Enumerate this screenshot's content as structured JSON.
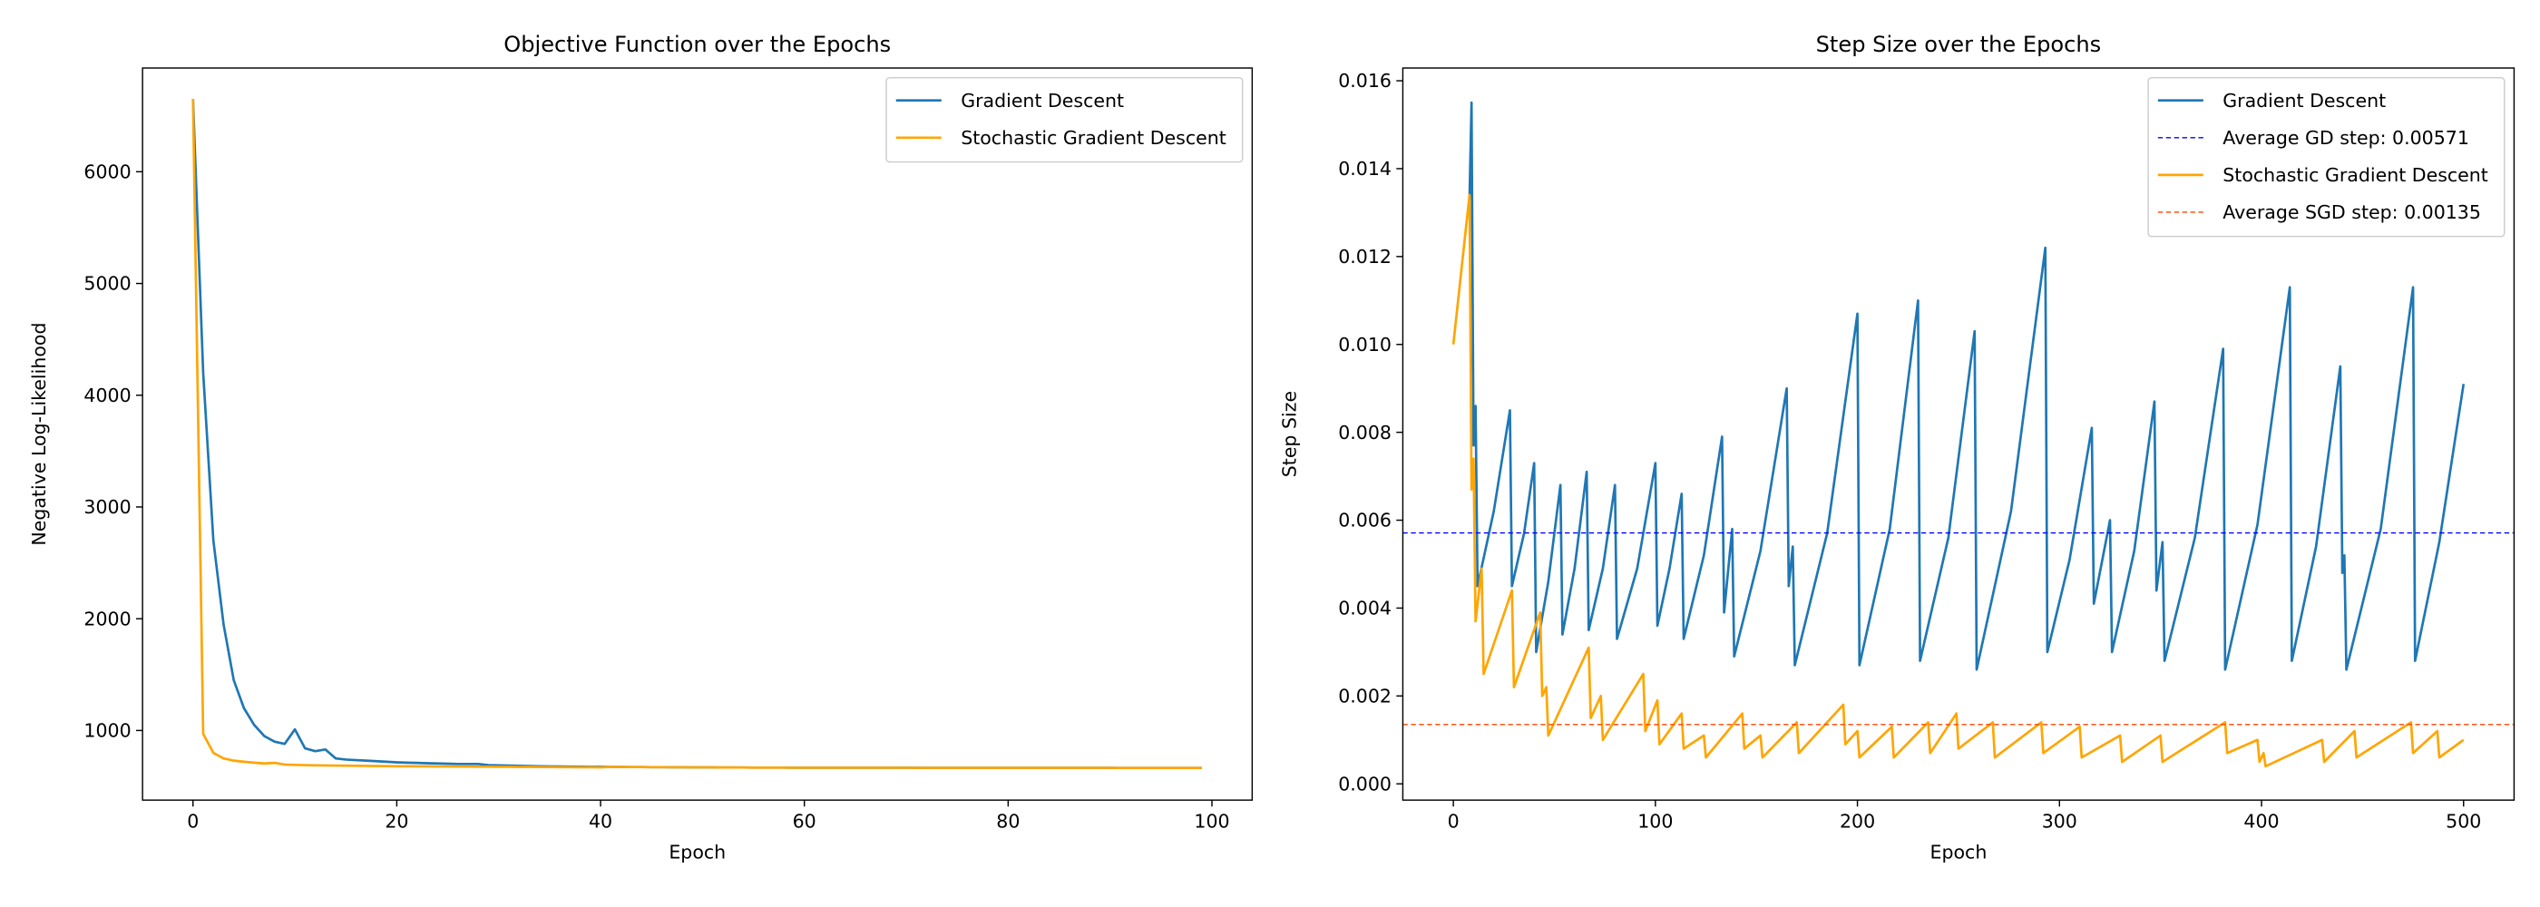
{
  "chart_data": [
    {
      "type": "line",
      "title": "Objective Function over the Epochs",
      "xlabel": "Epoch",
      "ylabel": "Negative Log-Likelihood",
      "x": [
        0,
        1,
        2,
        3,
        4,
        5,
        6,
        7,
        8,
        9,
        10,
        11,
        12,
        13,
        14,
        15,
        16,
        17,
        18,
        19,
        20,
        21,
        22,
        23,
        24,
        25,
        26,
        27,
        28,
        29,
        30,
        31,
        32,
        33,
        34,
        35,
        36,
        37,
        38,
        39,
        40,
        41,
        42,
        43,
        44,
        45,
        46,
        47,
        48,
        49,
        50,
        51,
        52,
        53,
        54,
        55,
        56,
        57,
        58,
        59,
        60,
        61,
        62,
        63,
        64,
        65,
        66,
        67,
        68,
        69,
        70,
        71,
        72,
        73,
        74,
        75,
        76,
        77,
        78,
        79,
        80,
        81,
        82,
        83,
        84,
        85,
        86,
        87,
        88,
        89,
        90,
        91,
        92,
        93,
        94,
        95,
        96,
        97,
        98,
        99
      ],
      "series": [
        {
          "name": "Gradient Descent",
          "color": "#1f77b4",
          "values": [
            6650,
            4200,
            2700,
            1950,
            1450,
            1200,
            1050,
            950,
            900,
            880,
            1010,
            840,
            815,
            830,
            750,
            740,
            735,
            730,
            725,
            720,
            715,
            712,
            710,
            707,
            705,
            703,
            700,
            700,
            700,
            690,
            688,
            686,
            684,
            682,
            680,
            679,
            678,
            677,
            676,
            675,
            675,
            674,
            674,
            673,
            673,
            672,
            672,
            671,
            671,
            670,
            670,
            670,
            669,
            669,
            669,
            668,
            668,
            668,
            668,
            667,
            667,
            667,
            667,
            667,
            667,
            667,
            667,
            667,
            667,
            667,
            667,
            666,
            666,
            666,
            666,
            666,
            666,
            666,
            666,
            666,
            666,
            666,
            666,
            666,
            666,
            666,
            666,
            666,
            666,
            666,
            666,
            665,
            665,
            665,
            665,
            665,
            665,
            665,
            665,
            665
          ]
        },
        {
          "name": "Stochastic Gradient Descent",
          "color": "#ffa500",
          "values": [
            6650,
            970,
            800,
            750,
            730,
            720,
            712,
            705,
            710,
            695,
            692,
            690,
            688,
            687,
            686,
            685,
            684,
            683,
            682,
            681,
            680,
            680,
            679,
            679,
            678,
            678,
            677,
            677,
            676,
            676,
            675,
            675,
            674,
            674,
            673,
            673,
            672,
            672,
            671,
            671,
            670,
            674,
            674,
            673,
            673,
            672,
            672,
            671,
            671,
            670,
            670,
            670,
            669,
            669,
            669,
            668,
            668,
            668,
            668,
            667,
            667,
            667,
            667,
            667,
            667,
            667,
            667,
            667,
            667,
            667,
            667,
            666,
            666,
            666,
            666,
            666,
            666,
            666,
            666,
            666,
            666,
            666,
            666,
            666,
            666,
            666,
            666,
            666,
            666,
            666,
            666,
            665,
            665,
            665,
            665,
            665,
            665,
            665,
            665,
            665
          ]
        }
      ],
      "xlim": [
        -4.95,
        103.95
      ],
      "xticks": [
        0,
        20,
        40,
        60,
        80,
        100
      ],
      "ylim": [
        377,
        6928
      ],
      "yticks": [
        1000,
        2000,
        3000,
        4000,
        5000,
        6000
      ],
      "legend": "upper right"
    },
    {
      "type": "line",
      "title": "Step Size over the Epochs",
      "xlabel": "Epoch",
      "ylabel": "Step Size",
      "series": [
        {
          "name": "Gradient Descent",
          "color": "#1f77b4",
          "x": [
            8,
            9,
            10,
            11,
            12,
            20,
            28,
            29,
            35,
            40,
            41,
            47,
            53,
            54,
            60,
            66,
            67,
            74,
            80,
            81,
            91,
            100,
            101,
            107,
            113,
            114,
            124,
            133,
            134,
            138,
            139,
            152,
            165,
            166,
            168,
            169,
            185,
            200,
            201,
            216,
            230,
            231,
            245,
            258,
            259,
            276,
            293,
            294,
            305,
            316,
            317,
            325,
            326,
            337,
            347,
            348,
            351,
            352,
            367,
            381,
            382,
            398,
            414,
            415,
            427,
            439,
            440,
            441,
            442,
            459,
            475,
            476,
            488,
            500
          ],
          "values": [
            0.0133,
            0.0155,
            0.0077,
            0.0086,
            0.0045,
            0.0062,
            0.0085,
            0.0045,
            0.0057,
            0.0073,
            0.003,
            0.0046,
            0.0068,
            0.0034,
            0.0049,
            0.0071,
            0.0035,
            0.0049,
            0.0068,
            0.0033,
            0.0049,
            0.0073,
            0.0036,
            0.0049,
            0.0066,
            0.0033,
            0.0052,
            0.0079,
            0.0039,
            0.0058,
            0.0029,
            0.0053,
            0.009,
            0.0045,
            0.0054,
            0.0027,
            0.0057,
            0.0107,
            0.0027,
            0.0058,
            0.011,
            0.0028,
            0.0056,
            0.0103,
            0.0026,
            0.0062,
            0.0122,
            0.003,
            0.0051,
            0.0081,
            0.0041,
            0.006,
            0.003,
            0.0053,
            0.0087,
            0.0044,
            0.0055,
            0.0028,
            0.0056,
            0.0099,
            0.0026,
            0.0059,
            0.0113,
            0.0028,
            0.0054,
            0.0095,
            0.0048,
            0.0052,
            0.0026,
            0.0058,
            0.0113,
            0.0028,
            0.0055,
            0.0091
          ]
        },
        {
          "name": "Stochastic Gradient Descent",
          "color": "#ffa500",
          "x": [
            0,
            8,
            9,
            10,
            11,
            14,
            15,
            29,
            30,
            43,
            44,
            46,
            47,
            67,
            68,
            73,
            74,
            94,
            95,
            101,
            102,
            113,
            114,
            124,
            125,
            143,
            144,
            152,
            153,
            170,
            171,
            193,
            194,
            200,
            201,
            217,
            218,
            235,
            236,
            249,
            250,
            267,
            268,
            291,
            292,
            310,
            311,
            330,
            331,
            350,
            351,
            382,
            383,
            398,
            399,
            401,
            402,
            430,
            431,
            446,
            447,
            474,
            475,
            487,
            488,
            500
          ],
          "values": [
            0.01,
            0.0134,
            0.0067,
            0.0074,
            0.0037,
            0.0049,
            0.0025,
            0.0044,
            0.0022,
            0.0039,
            0.002,
            0.0022,
            0.0011,
            0.0031,
            0.0015,
            0.002,
            0.001,
            0.0025,
            0.0012,
            0.0019,
            0.0009,
            0.0016,
            0.0008,
            0.0011,
            0.0006,
            0.0016,
            0.0008,
            0.0011,
            0.0006,
            0.0014,
            0.0007,
            0.0018,
            0.0009,
            0.0012,
            0.0006,
            0.0013,
            0.0006,
            0.0014,
            0.0007,
            0.0016,
            0.0008,
            0.0014,
            0.0006,
            0.0014,
            0.0007,
            0.0013,
            0.0006,
            0.0011,
            0.0005,
            0.0011,
            0.0005,
            0.0014,
            0.0007,
            0.001,
            0.0005,
            0.0007,
            0.0004,
            0.001,
            0.0005,
            0.0012,
            0.0006,
            0.0014,
            0.0007,
            0.0012,
            0.0006,
            0.001
          ]
        }
      ],
      "hlines": [
        {
          "name": "Average GD step: 0.00571",
          "color": "#0000ff",
          "value": 0.00571
        },
        {
          "name": "Average SGD step: 0.00135",
          "color": "#ff4500",
          "value": 0.00135
        }
      ],
      "xlim": [
        -25,
        525
      ],
      "xticks": [
        0,
        100,
        200,
        300,
        400,
        500
      ],
      "ylim": [
        -0.00037,
        0.01629
      ],
      "yticks": [
        {
          "value": 0,
          "label": "0.000"
        },
        {
          "value": 0.002,
          "label": "0.002"
        },
        {
          "value": 0.004,
          "label": "0.004"
        },
        {
          "value": 0.006,
          "label": "0.006"
        },
        {
          "value": 0.008,
          "label": "0.008"
        },
        {
          "value": 0.01,
          "label": "0.010"
        },
        {
          "value": 0.012,
          "label": "0.012"
        },
        {
          "value": 0.014,
          "label": "0.014"
        },
        {
          "value": 0.016,
          "label": "0.016"
        }
      ],
      "legend": "upper right"
    }
  ]
}
